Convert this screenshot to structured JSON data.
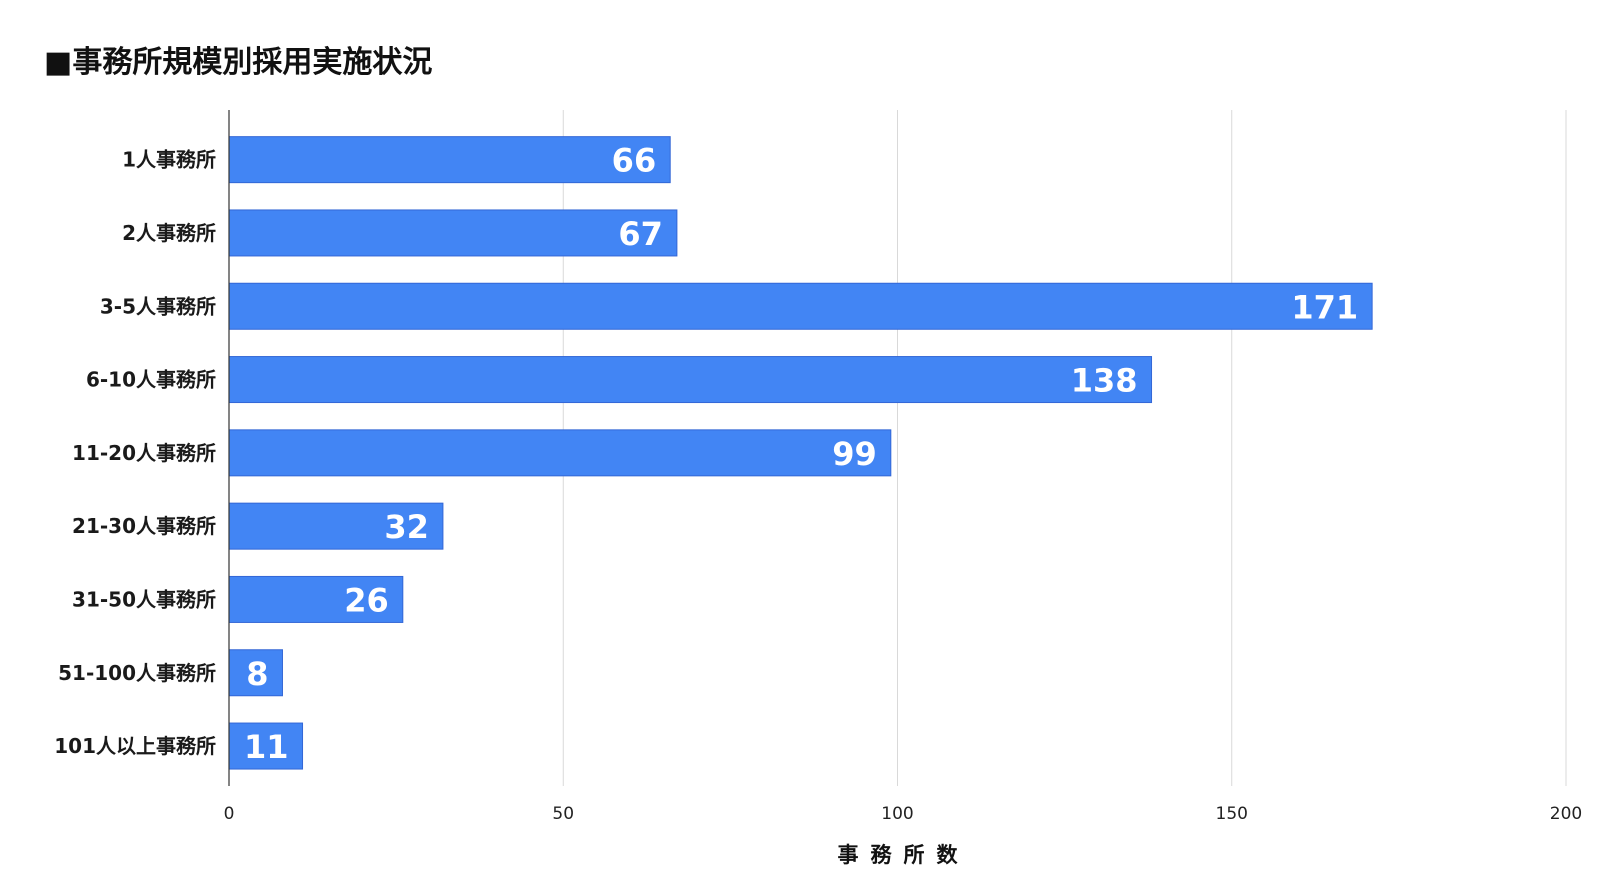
{
  "chart_data": {
    "type": "bar",
    "orientation": "horizontal",
    "title": "■事務所規模別採用実施状況",
    "categories": [
      "1人事務所",
      "2人事務所",
      "3-5人事務所",
      "6-10人事務所",
      "11-20人事務所",
      "21-30人事務所",
      "31-50人事務所",
      "51-100人事務所",
      "101人以上事務所"
    ],
    "values": [
      66,
      67,
      171,
      138,
      99,
      32,
      26,
      8,
      11
    ],
    "xlabel": "事務所数",
    "ylabel": "",
    "xlim": [
      0,
      200
    ],
    "xticks": [
      "0",
      "50",
      "100",
      "150",
      "200"
    ],
    "grid": true,
    "legend": "none",
    "colors": {
      "bar": "#4285f4",
      "bar_stroke": "#3367d6",
      "gridline": "#d9d9d9",
      "axis": "#333333",
      "data_label": "#ffffff"
    }
  }
}
